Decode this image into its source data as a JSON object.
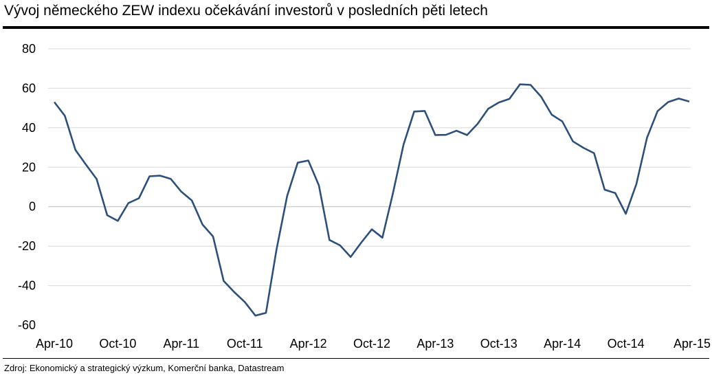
{
  "chart_data": {
    "type": "line",
    "title": "Vývoj německého ZEW indexu očekávání investorů v posledních pěti letech",
    "source": "Zdroj: Ekonomický a strategický výzkum, Komerční banka, Datastream",
    "xlabel": "",
    "ylabel": "",
    "ylim": [
      -60,
      80
    ],
    "yticks": [
      80,
      60,
      40,
      20,
      0,
      -20,
      -40,
      -60
    ],
    "xticks": [
      "Apr-10",
      "Oct-10",
      "Apr-11",
      "Oct-11",
      "Apr-12",
      "Oct-12",
      "Apr-13",
      "Oct-13",
      "Apr-14",
      "Oct-14",
      "Apr-15"
    ],
    "grid": true,
    "legend": "none",
    "line_color": "#2c4f7c",
    "x": [
      "2010-04",
      "2010-05",
      "2010-06",
      "2010-07",
      "2010-08",
      "2010-09",
      "2010-10",
      "2010-11",
      "2010-12",
      "2011-01",
      "2011-02",
      "2011-03",
      "2011-04",
      "2011-05",
      "2011-06",
      "2011-07",
      "2011-08",
      "2011-09",
      "2011-10",
      "2011-11",
      "2011-12",
      "2012-01",
      "2012-02",
      "2012-03",
      "2012-04",
      "2012-05",
      "2012-06",
      "2012-07",
      "2012-08",
      "2012-09",
      "2012-10",
      "2012-11",
      "2012-12",
      "2013-01",
      "2013-02",
      "2013-03",
      "2013-04",
      "2013-05",
      "2013-06",
      "2013-07",
      "2013-08",
      "2013-09",
      "2013-10",
      "2013-11",
      "2013-12",
      "2014-01",
      "2014-02",
      "2014-03",
      "2014-04",
      "2014-05",
      "2014-06",
      "2014-07",
      "2014-08",
      "2014-09",
      "2014-10",
      "2014-11",
      "2014-12",
      "2015-01",
      "2015-02",
      "2015-03",
      "2015-04"
    ],
    "values": [
      53,
      46,
      28.7,
      21.2,
      14,
      -4.3,
      -7.2,
      1.8,
      4.3,
      15.4,
      15.7,
      14.1,
      7.6,
      3.1,
      -9,
      -15.1,
      -37.6,
      -43.3,
      -48.3,
      -55.2,
      -53.8,
      -21.6,
      5.4,
      22.3,
      23.4,
      10.8,
      -16.9,
      -19.6,
      -25.5,
      -18.2,
      -11.5,
      -15.7,
      6.9,
      31.5,
      48.2,
      48.5,
      36.3,
      36.4,
      38.5,
      36.3,
      42,
      49.6,
      52.8,
      54.6,
      62,
      61.7,
      55.7,
      46.6,
      43.2,
      33.1,
      29.8,
      27.1,
      8.6,
      6.9,
      -3.6,
      11.5,
      34.9,
      48.4,
      53,
      54.8,
      53.3
    ]
  }
}
